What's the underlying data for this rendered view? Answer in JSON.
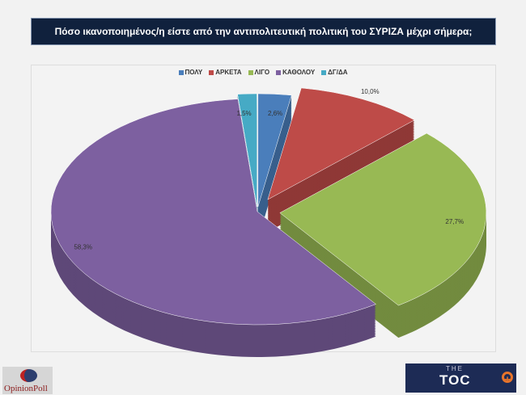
{
  "chart_data": {
    "type": "pie",
    "title": "Πόσο ικανοποιημένος/η είστε από την αντιπολιτευτική πολιτική του ΣΥΡΙΖΑ μέχρι σήμερα;",
    "categories": [
      "ΠΟΛΥ",
      "ΑΡΚΕΤΑ",
      "ΛΙΓΟ",
      "ΚΑΘΟΛΟΥ",
      "ΔΓ/ΔΑ"
    ],
    "values": [
      2.6,
      10.0,
      27.7,
      58.3,
      1.5
    ],
    "labels": [
      "2,6%",
      "10,0%",
      "27,7%",
      "58,3%",
      "1,5%"
    ],
    "colors": [
      "#4a7ebb",
      "#be4b48",
      "#98b954",
      "#7d60a0",
      "#46aac5"
    ],
    "legend_position": "top"
  },
  "logos": {
    "left": "OpinionPoll",
    "right_top": "THE",
    "right_main": "TOC"
  }
}
